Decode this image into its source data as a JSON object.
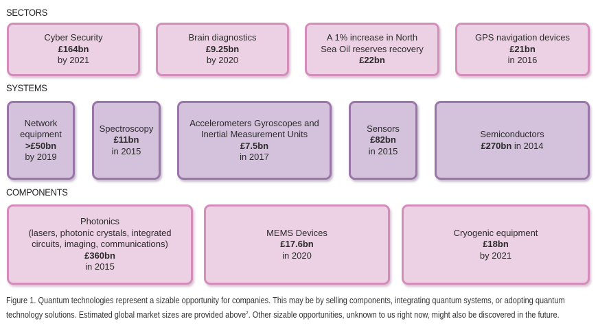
{
  "sections": {
    "sectors": "SECTORS",
    "systems": "SYSTEMS",
    "components": "COMPONENTS"
  },
  "sectors": [
    {
      "lines": [
        "Cyber Security"
      ],
      "value": "£164bn",
      "when": "by 2021"
    },
    {
      "lines": [
        "Brain diagnostics"
      ],
      "value": "£9.25bn",
      "when": "by 2020"
    },
    {
      "lines": [
        "A 1% increase in North",
        "Sea Oil reserves recovery"
      ],
      "value": "£22bn",
      "when": ""
    },
    {
      "lines": [
        "GPS navigation devices"
      ],
      "value": "£21bn",
      "when": "in 2016"
    }
  ],
  "systems": [
    {
      "lines": [
        "Network",
        "equipment"
      ],
      "value": ">£50bn",
      "when": "by 2019"
    },
    {
      "lines": [
        "Spectroscopy"
      ],
      "value": "£11bn",
      "when": "in 2015"
    },
    {
      "lines": [
        "Accelerometers Gyroscopes and",
        "Inertial Measurement Units"
      ],
      "value": "£7.5bn",
      "when": "in 2017"
    },
    {
      "lines": [
        "Sensors"
      ],
      "value": "£82bn",
      "when": "in 2015"
    },
    {
      "lines": [
        "Semiconductors"
      ],
      "value": "£270bn",
      "when": "in 2014"
    }
  ],
  "components": [
    {
      "lines": [
        "Photonics",
        "(lasers, photonic crystals, integrated",
        "circuits, imaging, communications)"
      ],
      "value": "£360bn",
      "when": "in 2015"
    },
    {
      "lines": [
        "MEMS Devices"
      ],
      "value": "£17.6bn",
      "when": "in 2020"
    },
    {
      "lines": [
        "Cryogenic equipment"
      ],
      "value": "£18bn",
      "when": "by 2021"
    }
  ],
  "caption": {
    "line1": "Figure 1. Quantum technologies represent a sizable opportunity for companies. This may be by selling components, integrating quantum systems, or adopting quantum",
    "line2a": "technology solutions. Estimated global market sizes are provided above",
    "sup": "2",
    "line2b": ". Other sizable opportunities, unknown to us right now, might also be discovered in the future."
  }
}
